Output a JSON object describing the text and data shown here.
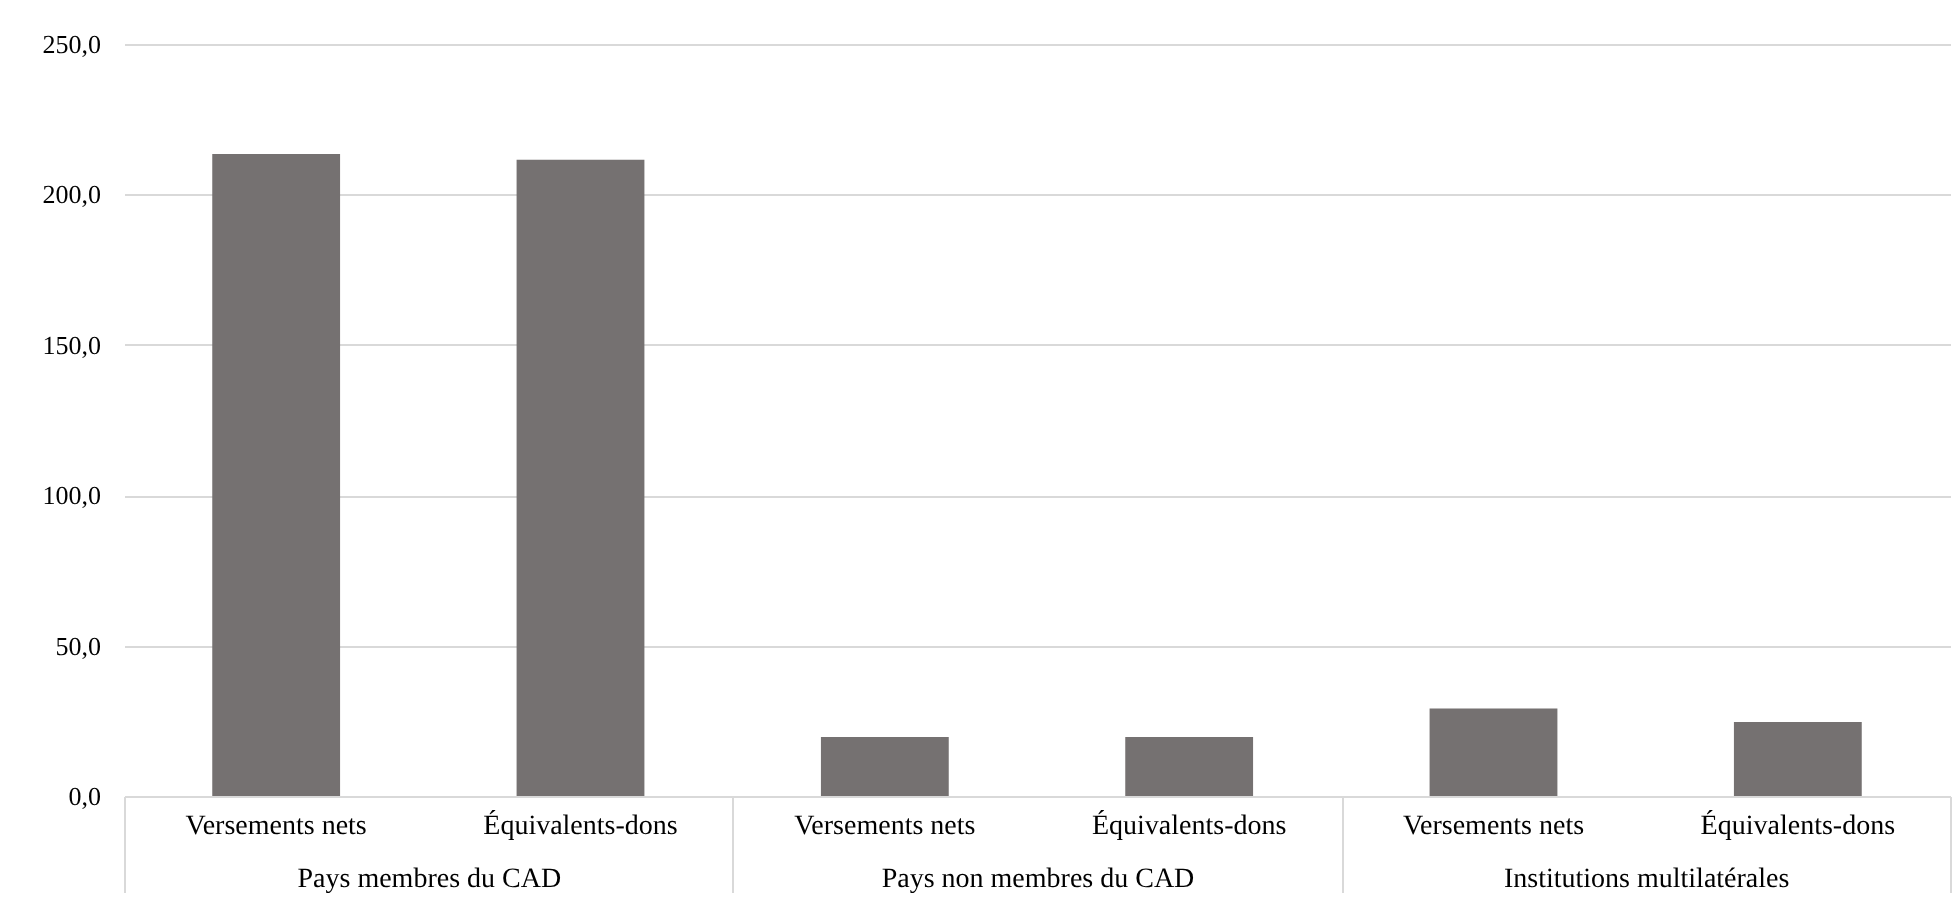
{
  "chart_data": {
    "type": "bar",
    "categories": [
      "Pays membres du CAD",
      "Pays non membres du CAD",
      "Institutions multilatérales"
    ],
    "series": [
      {
        "name": "Versements nets",
        "color": "#757171",
        "values": [
          213.4,
          19.6,
          29.1
        ]
      },
      {
        "name": "Équivalents-dons",
        "color": "#757171",
        "values": [
          211.5,
          19.6,
          24.6
        ]
      }
    ],
    "ylim": [
      0,
      250
    ],
    "yticks": [
      {
        "value": 0,
        "label": "0,0"
      },
      {
        "value": 50,
        "label": "50,0"
      },
      {
        "value": 100,
        "label": "100,0"
      },
      {
        "value": 150,
        "label": "150,0"
      },
      {
        "value": 200,
        "label": "200,0"
      },
      {
        "value": 250,
        "label": "250,0"
      }
    ],
    "grid": "y"
  }
}
